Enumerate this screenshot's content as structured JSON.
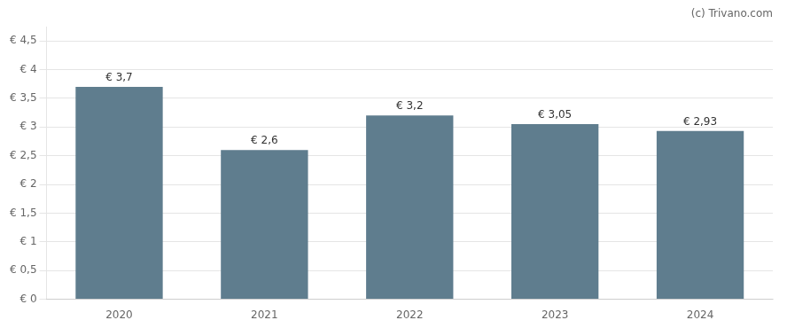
{
  "chart_data": {
    "type": "bar",
    "categories": [
      "2020",
      "2021",
      "2022",
      "2023",
      "2024"
    ],
    "values": [
      3.7,
      2.6,
      3.2,
      3.05,
      2.93
    ],
    "value_labels": [
      "€ 3,7",
      "€ 2,6",
      "€ 3,2",
      "€ 3,05",
      "€ 2,93"
    ],
    "data_labels": true,
    "color": "#5f7d8e",
    "ylim": [
      0,
      4.75
    ],
    "yticks": [
      {
        "value": 0,
        "label": "€ 0"
      },
      {
        "value": 0.5,
        "label": "€ 0,5"
      },
      {
        "value": 1.0,
        "label": "€ 1"
      },
      {
        "value": 1.5,
        "label": "€ 1,5"
      },
      {
        "value": 2.0,
        "label": "€ 2"
      },
      {
        "value": 2.5,
        "label": "€ 2,5"
      },
      {
        "value": 3.0,
        "label": "€ 3"
      },
      {
        "value": 3.5,
        "label": "€ 3,5"
      },
      {
        "value": 4.0,
        "label": "€ 4"
      },
      {
        "value": 4.5,
        "label": "€ 4,5"
      }
    ],
    "grid": true,
    "annotations": [
      "(c) Trivano.com"
    ]
  }
}
